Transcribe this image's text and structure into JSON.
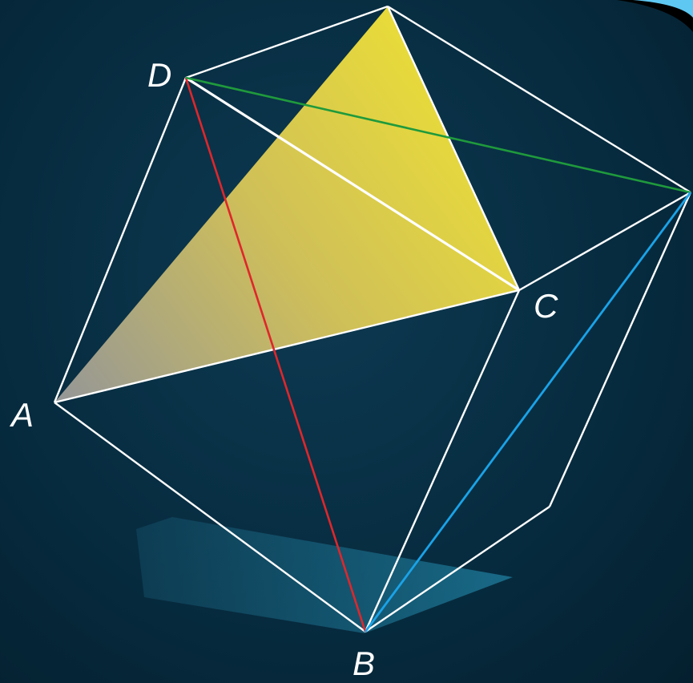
{
  "diagram": {
    "vertex_labels": {
      "A": "A",
      "B": "B",
      "C": "C",
      "D": "D"
    },
    "colors": {
      "background": "#072c40",
      "edges": "#ffffff",
      "triangle_fill_start": "#a8a8a8",
      "triangle_fill_end": "#f2e23a",
      "diagonal_DB": "#e0262b",
      "diagonal_D_right": "#1f9a3c",
      "diagonal_B_right": "#1aa3e8",
      "shadow": "#1f6f8c",
      "corner_accent": "#5ec8f2"
    }
  }
}
